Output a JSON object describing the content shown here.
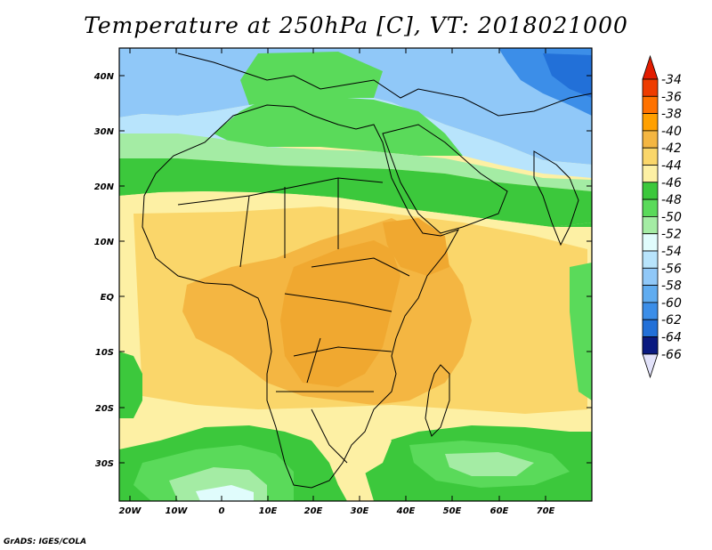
{
  "title": "Temperature at 250hPa [C], VT: 2018021000",
  "credit": "GrADS: IGES/COLA",
  "lon_labels": [
    "20W",
    "10W",
    "0",
    "10E",
    "20E",
    "30E",
    "40E",
    "50E",
    "60E",
    "70E"
  ],
  "lat_labels": [
    "40N",
    "30N",
    "20N",
    "10N",
    "EQ",
    "10S",
    "20S",
    "30S"
  ],
  "colorbar": {
    "labels": [
      "-34",
      "-36",
      "-38",
      "-40",
      "-42",
      "-44",
      "-46",
      "-48",
      "-50",
      "-52",
      "-54",
      "-56",
      "-58",
      "-60",
      "-62",
      "-64",
      "-66"
    ],
    "colors": [
      "#ee3c00",
      "#ff7200",
      "#ffa000",
      "#f4b642",
      "#fad66a",
      "#fdf0a4",
      "#3cc83c",
      "#5ada5a",
      "#a4eca4",
      "#e0fcfc",
      "#b8e4fc",
      "#90c8f8",
      "#60acf0",
      "#3c8ee8",
      "#2270d8",
      "#1050c0",
      "#0a1a80"
    ],
    "top_color": "#e21c00",
    "bottom_color": "#e2e2fa"
  },
  "map": {
    "lon_range": [
      -23,
      80
    ],
    "lat_range": [
      -37,
      45
    ],
    "zones": [
      {
        "name": "north-blue-band",
        "color": "#90c8f8"
      },
      {
        "name": "north-light-band",
        "color": "#e0fcfc"
      },
      {
        "name": "sahara-green-band",
        "color": "#3cc83c"
      },
      {
        "name": "tropical-yellow",
        "color": "#fdf0a4"
      },
      {
        "name": "central-orange",
        "color": "#f4b642"
      },
      {
        "name": "southern-green",
        "color": "#3cc83c"
      }
    ]
  }
}
